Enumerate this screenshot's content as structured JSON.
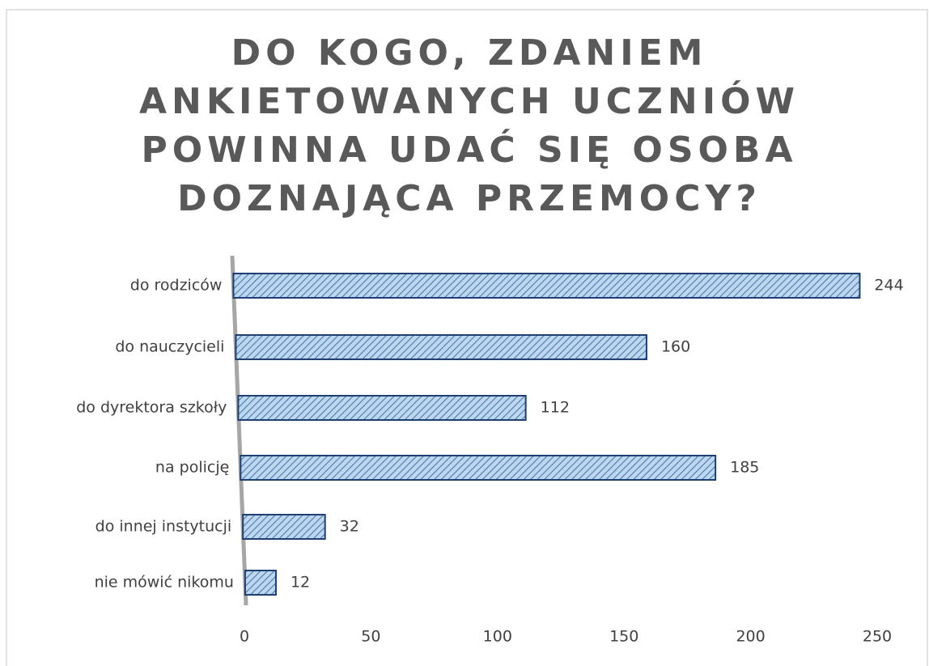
{
  "chart_data": {
    "type": "bar",
    "orientation": "horizontal",
    "title": [
      "DO KOGO, ZDANIEM",
      "ANKIETOWANYCH UCZNIÓW",
      "POWINNA UDAĆ SIĘ OSOBA",
      "DOZNAJĄCA PRZEMOCY?"
    ],
    "categories": [
      "do rodziców",
      "do nauczycieli",
      "do dyrektora szkoły",
      "na policję",
      "do innej instytucji",
      "nie mówić nikomu"
    ],
    "values": [
      244,
      160,
      112,
      185,
      32,
      12
    ],
    "color": "#9dc3e6",
    "edge_color": "#1f3f73",
    "xlim": [
      0,
      250
    ],
    "xticks": [
      0,
      50,
      100,
      150,
      200,
      250
    ],
    "grid": false
  }
}
